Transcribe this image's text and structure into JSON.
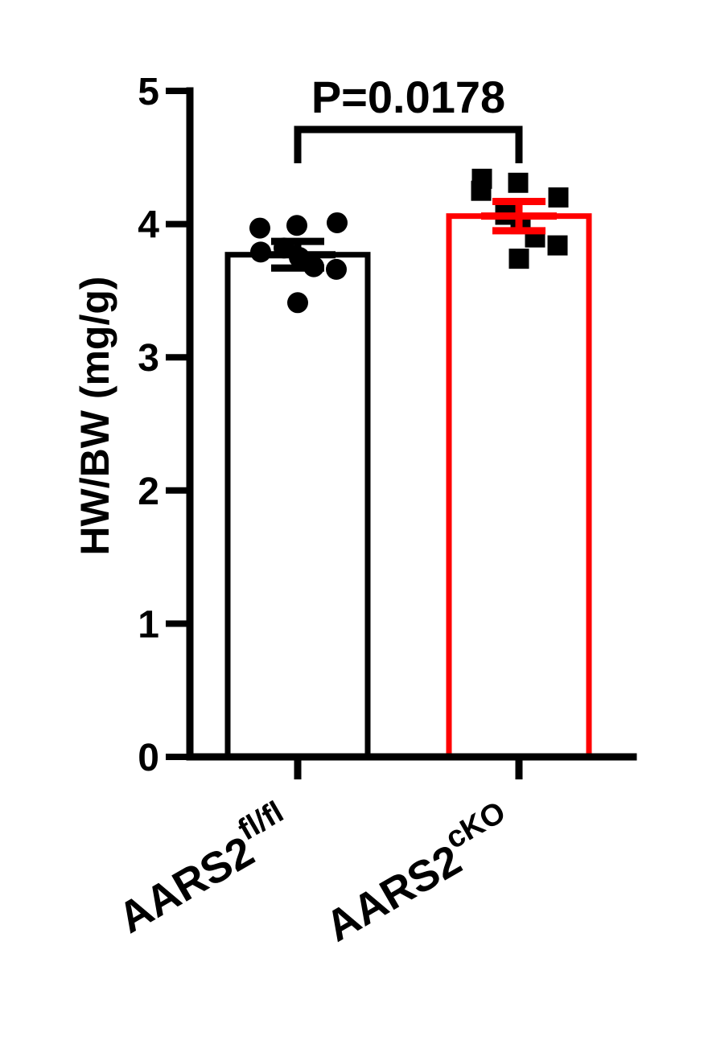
{
  "chart_data": {
    "type": "bar",
    "title": "",
    "xlabel": "",
    "ylabel": "HW/BW (mg/g)",
    "ylim": [
      0,
      5
    ],
    "yticks": [
      "0",
      "1",
      "2",
      "3",
      "4",
      "5"
    ],
    "grid": false,
    "legend": "none",
    "categories": [
      {
        "base": "AARS2",
        "sup": "fl/fl"
      },
      {
        "base": "AARS2",
        "sup": "cKO"
      }
    ],
    "series": [
      {
        "values": [
          3.77,
          4.06
        ],
        "sem": [
          0.1,
          0.11
        ],
        "bar_colors": [
          "#000000",
          "#ff0000"
        ],
        "errorbar_colors": [
          "#000000",
          "#ff0000"
        ],
        "marker_shapes": [
          "circle",
          "square"
        ],
        "points": [
          [
            3.97,
            3.99,
            4.01,
            3.79,
            3.82,
            3.75,
            3.68,
            3.66,
            3.41
          ],
          [
            4.25,
            4.31,
            4.2,
            4.34,
            4.07,
            4.0,
            3.9,
            3.84,
            3.74
          ]
        ]
      }
    ],
    "annotations": [
      {
        "text": "P=0.0178",
        "between": [
          0,
          1
        ]
      }
    ]
  }
}
